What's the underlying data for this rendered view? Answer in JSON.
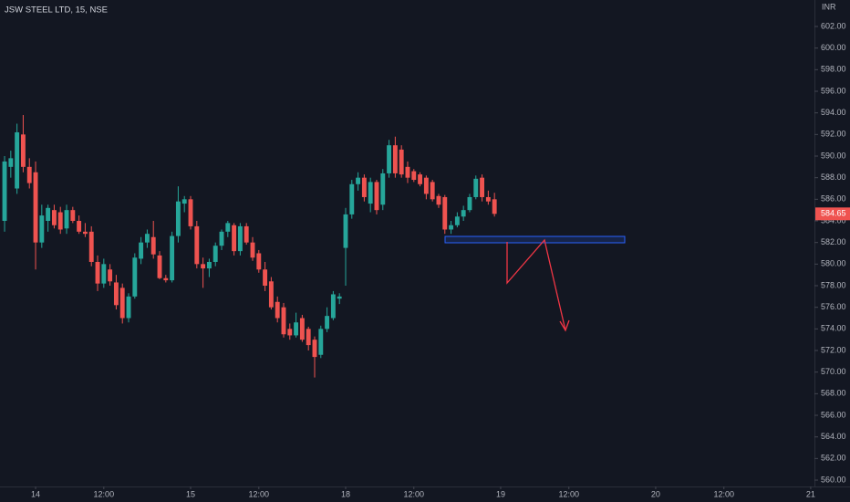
{
  "chart_data": {
    "type": "candlestick",
    "title": "JSW STEEL LTD, 15, NSE",
    "currency": "INR",
    "up_color": "#26a69a",
    "down_color": "#ef5350",
    "grid": false,
    "x": [
      -5,
      -4,
      -3,
      -2,
      -1,
      0,
      1,
      2,
      3,
      4,
      5,
      6,
      7,
      8,
      9,
      10,
      11,
      12,
      13,
      14,
      15,
      16,
      17,
      18,
      19,
      20,
      21,
      22,
      23,
      24,
      25,
      26,
      27,
      28,
      29,
      30,
      31,
      32,
      33,
      34,
      35,
      36,
      37,
      38,
      39,
      40,
      41,
      42,
      43,
      44,
      45,
      46,
      47,
      48,
      49,
      50,
      51,
      52,
      53,
      54,
      55,
      56,
      57,
      58,
      59,
      60,
      61,
      62,
      63,
      64,
      65,
      66,
      67,
      68,
      69,
      70,
      71,
      72,
      73,
      74
    ],
    "open": [
      584.0,
      589.0,
      587.0,
      592.0,
      589.0,
      588.5,
      582.0,
      584.0,
      585.0,
      584.8,
      583.3,
      585.0,
      584.0,
      583.0,
      583.0,
      580.2,
      578.2,
      579.5,
      578.3,
      577.8,
      575.0,
      577.0,
      580.5,
      582.0,
      582.5,
      580.8,
      578.7,
      578.5,
      582.6,
      585.6,
      586.0,
      583.5,
      580.0,
      579.6,
      580.2,
      581.7,
      583.0,
      583.6,
      581.2,
      583.5,
      582.0,
      581.0,
      579.5,
      578.4,
      576.5,
      576.0,
      574.0,
      573.4,
      575.0,
      574.0,
      573.0,
      571.6,
      574.0,
      575.0,
      576.8,
      581.5,
      584.6,
      587.4,
      588.0,
      585.6,
      587.6,
      585.5,
      588.4,
      591.0,
      590.6,
      589.0,
      588.6,
      588.3,
      588.0,
      587.6,
      586.3,
      586.2,
      583.2,
      583.6,
      584.4,
      585.0,
      586.2,
      588.0,
      586.2,
      586.0
    ],
    "high": [
      590.0,
      590.5,
      593.0,
      593.8,
      589.8,
      589.5,
      585.5,
      585.5,
      585.5,
      585.3,
      585.5,
      585.3,
      584.5,
      583.8,
      583.5,
      580.8,
      580.5,
      580.0,
      579.0,
      578.2,
      577.3,
      581.0,
      582.5,
      583.2,
      584.0,
      581.2,
      579.0,
      583.0,
      587.2,
      586.3,
      586.3,
      584.0,
      580.6,
      580.5,
      582.0,
      583.2,
      584.0,
      583.8,
      583.8,
      583.8,
      582.5,
      581.3,
      580.2,
      578.8,
      577.0,
      576.4,
      574.5,
      575.5,
      575.3,
      574.2,
      573.3,
      574.3,
      576.0,
      577.5,
      577.3,
      585.2,
      587.8,
      588.5,
      588.3,
      588.0,
      587.8,
      588.8,
      591.5,
      591.8,
      591.0,
      589.5,
      588.8,
      588.5,
      588.2,
      587.8,
      586.5,
      586.4,
      584.0,
      584.8,
      585.4,
      586.5,
      588.2,
      588.3,
      586.8,
      586.6
    ],
    "low": [
      583.0,
      588.0,
      586.5,
      588.5,
      587.0,
      579.5,
      581.5,
      583.0,
      583.3,
      582.8,
      582.8,
      583.8,
      582.8,
      582.5,
      579.8,
      577.5,
      577.8,
      578.0,
      575.8,
      574.5,
      574.6,
      576.8,
      580.0,
      581.5,
      580.5,
      578.6,
      578.3,
      578.3,
      582.0,
      584.8,
      583.2,
      579.6,
      577.8,
      578.8,
      579.8,
      581.3,
      582.5,
      580.8,
      580.8,
      581.8,
      580.3,
      579.2,
      577.5,
      575.8,
      574.6,
      573.2,
      573.0,
      573.2,
      572.8,
      572.0,
      569.5,
      571.3,
      573.7,
      574.8,
      576.3,
      578.0,
      584.2,
      586.8,
      585.8,
      584.8,
      584.6,
      585.0,
      588.0,
      588.0,
      588.0,
      587.5,
      587.6,
      587.2,
      586.0,
      585.8,
      585.2,
      582.8,
      582.8,
      583.4,
      584.0,
      584.8,
      586.0,
      585.8,
      585.5,
      584.4
    ],
    "close": [
      589.5,
      589.8,
      592.2,
      589.0,
      587.5,
      582.0,
      584.5,
      585.2,
      583.6,
      583.2,
      585.0,
      584.0,
      583.0,
      582.8,
      580.2,
      578.2,
      580.0,
      578.4,
      576.2,
      575.0,
      577.0,
      580.6,
      582.0,
      582.8,
      580.9,
      578.7,
      578.5,
      582.6,
      585.8,
      586.0,
      583.5,
      580.0,
      579.6,
      580.2,
      581.7,
      583.0,
      583.8,
      581.2,
      583.5,
      582.0,
      580.6,
      579.5,
      578.0,
      576.0,
      575.0,
      573.5,
      573.4,
      574.6,
      573.0,
      572.5,
      571.4,
      574.0,
      575.2,
      577.2,
      577.0,
      584.6,
      587.4,
      588.0,
      586.2,
      587.6,
      585.0,
      588.4,
      591.0,
      588.4,
      588.3,
      588.0,
      587.8,
      587.4,
      586.5,
      586.0,
      585.5,
      583.2,
      583.6,
      584.4,
      585.0,
      586.2,
      587.9,
      586.2,
      585.8,
      584.65
    ],
    "xlim": [
      -5.74,
      125.6
    ],
    "xticks": [
      {
        "value": 0,
        "label": "14"
      },
      {
        "value": 11,
        "label": "12:00"
      },
      {
        "value": 25,
        "label": "15"
      },
      {
        "value": 36,
        "label": "12:00"
      },
      {
        "value": 50,
        "label": "18"
      },
      {
        "value": 61,
        "label": "12:00"
      },
      {
        "value": 75,
        "label": "19"
      },
      {
        "value": 86,
        "label": "12:00"
      },
      {
        "value": 100,
        "label": "20"
      },
      {
        "value": 111,
        "label": "12:00"
      },
      {
        "value": 125,
        "label": "21"
      }
    ],
    "ylim": [
      559.41,
      604.45
    ],
    "yticks": [
      {
        "value": 560,
        "label": "560.00"
      },
      {
        "value": 562,
        "label": "562.00"
      },
      {
        "value": 564,
        "label": "564.00"
      },
      {
        "value": 566,
        "label": "566.00"
      },
      {
        "value": 568,
        "label": "568.00"
      },
      {
        "value": 570,
        "label": "570.00"
      },
      {
        "value": 572,
        "label": "572.00"
      },
      {
        "value": 574,
        "label": "574.00"
      },
      {
        "value": 576,
        "label": "576.00"
      },
      {
        "value": 578,
        "label": "578.00"
      },
      {
        "value": 580,
        "label": "580.00"
      },
      {
        "value": 582,
        "label": "582.00"
      },
      {
        "value": 584,
        "label": "584.00"
      },
      {
        "value": 586,
        "label": "586.00"
      },
      {
        "value": 588,
        "label": "588.00"
      },
      {
        "value": 590,
        "label": "590.00"
      },
      {
        "value": 592,
        "label": "592.00"
      },
      {
        "value": 594,
        "label": "594.00"
      },
      {
        "value": 596,
        "label": "596.00"
      },
      {
        "value": 598,
        "label": "598.00"
      },
      {
        "value": 600,
        "label": "600.00"
      },
      {
        "value": 602,
        "label": "602.00"
      }
    ]
  }
}
